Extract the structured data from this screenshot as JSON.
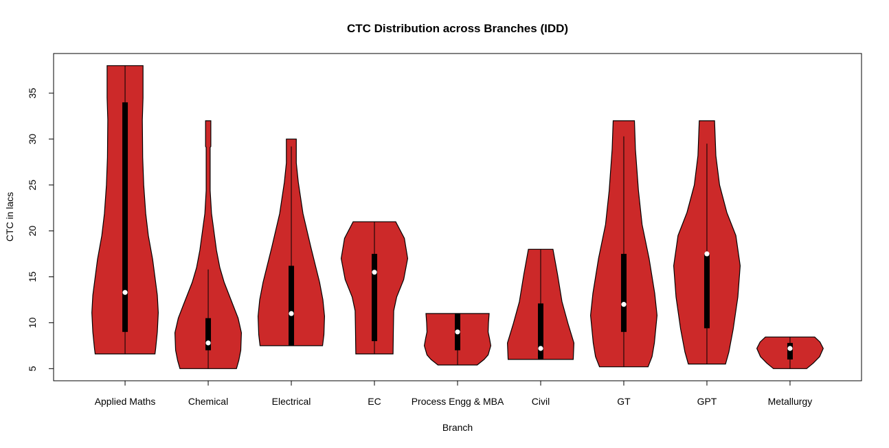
{
  "chart_data": {
    "type": "violin",
    "title": "CTC Distribution across Branches (IDD)",
    "xlabel": "Branch",
    "ylabel": "CTC in lacs",
    "ylim": [
      3.68,
      39.32
    ],
    "yticks": [
      5,
      10,
      15,
      20,
      25,
      30,
      35
    ],
    "grid": false,
    "fill_color": "#CC2929",
    "box_color": "#000000",
    "median_color": "#FFFFFF",
    "categories": [
      "Applied Maths",
      "Chemical",
      "Electrical",
      "EC",
      "Process Engg & MBA",
      "Civil",
      "GT",
      "GPT",
      "Metallurgy"
    ],
    "series": [
      {
        "category": "Applied Maths",
        "min": 6.6,
        "q1": 9.0,
        "median": 13.3,
        "q3": 34.0,
        "max": 38.0,
        "whisker_low": 6.6,
        "whisker_high": 38.0,
        "density_profile": [
          [
            6.6,
            0.9
          ],
          [
            7.2,
            0.92
          ],
          [
            9,
            0.97
          ],
          [
            11.1,
            1.0
          ],
          [
            13,
            0.97
          ],
          [
            16.9,
            0.83
          ],
          [
            19.5,
            0.7
          ],
          [
            21.9,
            0.62
          ],
          [
            25,
            0.56
          ],
          [
            28,
            0.53
          ],
          [
            32.1,
            0.52
          ],
          [
            34.5,
            0.54
          ],
          [
            38.0,
            0.54
          ]
        ]
      },
      {
        "category": "Chemical",
        "min": 5.0,
        "q1": 7.0,
        "median": 7.8,
        "q3": 10.5,
        "max": 32.0,
        "whisker_low": 5.0,
        "whisker_high": 15.8,
        "density_profile": [
          [
            5.0,
            0.85
          ],
          [
            5.9,
            0.92
          ],
          [
            7.0,
            0.98
          ],
          [
            8.9,
            1.0
          ],
          [
            10.5,
            0.9
          ],
          [
            11.9,
            0.75
          ],
          [
            14.4,
            0.48
          ],
          [
            16,
            0.35
          ],
          [
            17.9,
            0.25
          ],
          [
            21.9,
            0.1
          ],
          [
            24.4,
            0.06
          ],
          [
            29.1,
            0.06
          ],
          [
            29.2,
            0.08
          ],
          [
            32.0,
            0.08
          ]
        ]
      },
      {
        "category": "Electrical",
        "min": 7.5,
        "q1": 7.5,
        "median": 11.0,
        "q3": 16.2,
        "max": 30.0,
        "whisker_low": 7.5,
        "whisker_high": 29.2,
        "density_profile": [
          [
            7.5,
            0.94
          ],
          [
            8.7,
            0.98
          ],
          [
            10.7,
            1.0
          ],
          [
            12.5,
            0.95
          ],
          [
            14.4,
            0.85
          ],
          [
            18.2,
            0.59
          ],
          [
            21.9,
            0.35
          ],
          [
            25.3,
            0.21
          ],
          [
            27.4,
            0.15
          ],
          [
            30.0,
            0.15
          ]
        ]
      },
      {
        "category": "EC",
        "min": 6.6,
        "q1": 8.0,
        "median": 15.5,
        "q3": 17.5,
        "max": 21.0,
        "whisker_low": 6.6,
        "whisker_high": 21.0,
        "density_profile": [
          [
            6.6,
            0.56
          ],
          [
            9.3,
            0.57
          ],
          [
            11.3,
            0.58
          ],
          [
            12.8,
            0.67
          ],
          [
            14.7,
            0.88
          ],
          [
            17.0,
            1.0
          ],
          [
            19.2,
            0.9
          ],
          [
            21.0,
            0.64
          ]
        ]
      },
      {
        "category": "Process Engg & MBA",
        "min": 5.4,
        "q1": 7.0,
        "median": 9.0,
        "q3": 11.0,
        "max": 11.0,
        "whisker_low": 5.4,
        "whisker_high": 11.0,
        "density_profile": [
          [
            5.4,
            0.59
          ],
          [
            6.0,
            0.8
          ],
          [
            6.5,
            0.92
          ],
          [
            7.5,
            1.0
          ],
          [
            8.3,
            0.96
          ],
          [
            9.0,
            0.92
          ],
          [
            10,
            0.93
          ],
          [
            11.0,
            0.95
          ]
        ]
      },
      {
        "category": "Civil",
        "min": 6.0,
        "q1": 6.0,
        "median": 7.2,
        "q3": 12.1,
        "max": 18.0,
        "whisker_low": 6.0,
        "whisker_high": 18.0,
        "density_profile": [
          [
            6.0,
            0.98
          ],
          [
            7.8,
            1.0
          ],
          [
            9.8,
            0.83
          ],
          [
            12.3,
            0.64
          ],
          [
            15.2,
            0.51
          ],
          [
            18.0,
            0.37
          ]
        ]
      },
      {
        "category": "GT",
        "min": 5.2,
        "q1": 9.0,
        "median": 12.0,
        "q3": 17.5,
        "max": 32.0,
        "whisker_low": 5.2,
        "whisker_high": 30.3,
        "density_profile": [
          [
            5.2,
            0.73
          ],
          [
            6.3,
            0.85
          ],
          [
            7.8,
            0.92
          ],
          [
            10.8,
            1.0
          ],
          [
            13.2,
            0.93
          ],
          [
            17.0,
            0.76
          ],
          [
            20.7,
            0.55
          ],
          [
            24.4,
            0.44
          ],
          [
            28.9,
            0.35
          ],
          [
            32.0,
            0.32
          ]
        ]
      },
      {
        "category": "GPT",
        "min": 5.5,
        "q1": 9.4,
        "median": 17.5,
        "q3": 17.5,
        "max": 32.0,
        "whisker_low": 5.5,
        "whisker_high": 29.5,
        "density_profile": [
          [
            5.5,
            0.56
          ],
          [
            6.8,
            0.66
          ],
          [
            9.3,
            0.79
          ],
          [
            12.8,
            0.93
          ],
          [
            16.2,
            1.0
          ],
          [
            19.5,
            0.87
          ],
          [
            22.0,
            0.6
          ],
          [
            25.0,
            0.38
          ],
          [
            28.2,
            0.27
          ],
          [
            32.0,
            0.23
          ]
        ]
      },
      {
        "category": "Metallurgy",
        "min": 5.0,
        "q1": 6.0,
        "median": 7.2,
        "q3": 7.8,
        "max": 8.45,
        "whisker_low": 5.0,
        "whisker_high": 8.45,
        "density_profile": [
          [
            5.0,
            0.5
          ],
          [
            5.6,
            0.7
          ],
          [
            6.3,
            0.89
          ],
          [
            7.2,
            1.0
          ],
          [
            7.9,
            0.9
          ],
          [
            8.45,
            0.74
          ]
        ]
      }
    ]
  }
}
